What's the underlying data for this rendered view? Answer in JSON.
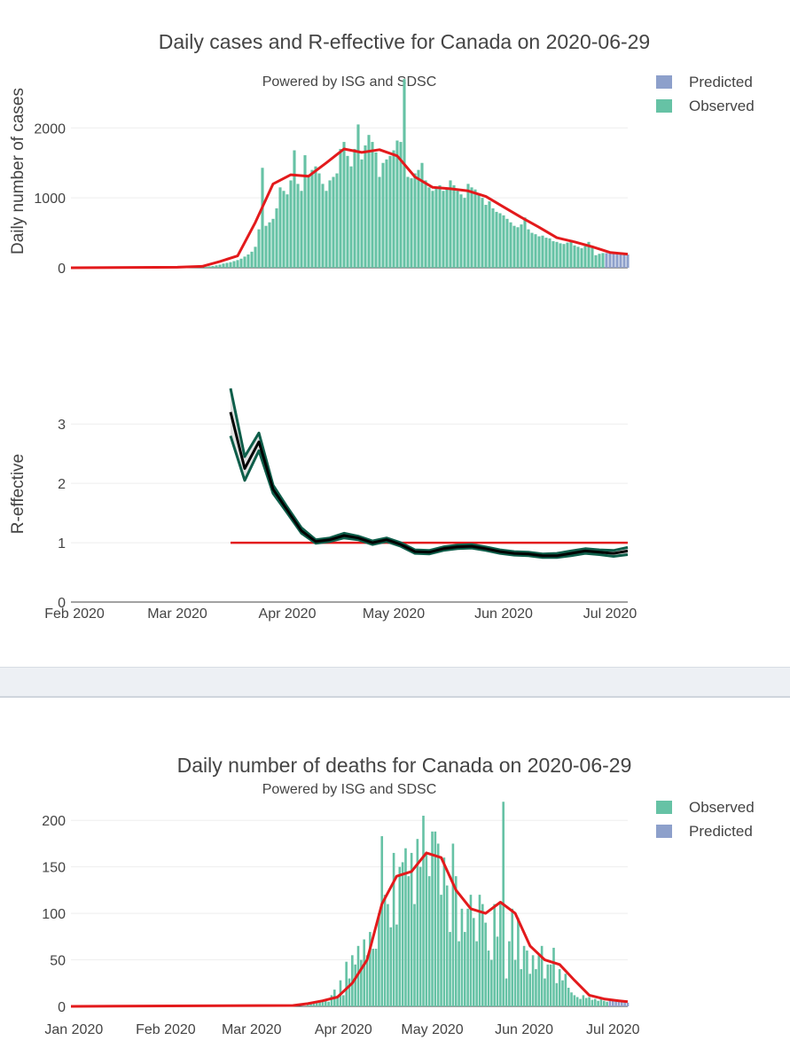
{
  "colors": {
    "observed": "#66c2a5",
    "predicted": "#8da0cb",
    "trend": "#e31a1c",
    "reff_band": "#0e5e4a",
    "reff_mean": "#000000",
    "threshold": "#e31a1c",
    "grid": "#eeeeee"
  },
  "chart_data": [
    {
      "id": "cases",
      "type": "bar",
      "title": "Daily cases and R-effective for Canada on 2020-06-29",
      "subtitle": "Powered by ISG and SDSC",
      "ylabel": "Daily number of cases",
      "xlabel": "",
      "ylim": [
        0,
        2600
      ],
      "yticks": [
        0,
        1000,
        2000
      ],
      "legend": [
        "Predicted",
        "Observed"
      ],
      "legend_position": "top-right",
      "observed_dates": [
        "2020-03-08",
        "2020-03-09",
        "2020-03-10",
        "2020-03-11",
        "2020-03-12",
        "2020-03-13",
        "2020-03-14",
        "2020-03-15",
        "2020-03-16",
        "2020-03-17",
        "2020-03-18",
        "2020-03-19",
        "2020-03-20",
        "2020-03-21",
        "2020-03-22",
        "2020-03-23",
        "2020-03-24",
        "2020-03-25",
        "2020-03-26",
        "2020-03-27",
        "2020-03-28",
        "2020-03-29",
        "2020-03-30",
        "2020-03-31",
        "2020-04-01",
        "2020-04-02",
        "2020-04-03",
        "2020-04-04",
        "2020-04-05",
        "2020-04-06",
        "2020-04-07",
        "2020-04-08",
        "2020-04-09",
        "2020-04-10",
        "2020-04-11",
        "2020-04-12",
        "2020-04-13",
        "2020-04-14",
        "2020-04-15",
        "2020-04-16",
        "2020-04-17",
        "2020-04-18",
        "2020-04-19",
        "2020-04-20",
        "2020-04-21",
        "2020-04-22",
        "2020-04-23",
        "2020-04-24",
        "2020-04-25",
        "2020-04-26",
        "2020-04-27",
        "2020-04-28",
        "2020-04-29",
        "2020-04-30",
        "2020-05-01",
        "2020-05-02",
        "2020-05-03",
        "2020-05-04",
        "2020-05-05",
        "2020-05-06",
        "2020-05-07",
        "2020-05-08",
        "2020-05-09",
        "2020-05-10",
        "2020-05-11",
        "2020-05-12",
        "2020-05-13",
        "2020-05-14",
        "2020-05-15",
        "2020-05-16",
        "2020-05-17",
        "2020-05-18",
        "2020-05-19",
        "2020-05-20",
        "2020-05-21",
        "2020-05-22",
        "2020-05-23",
        "2020-05-24",
        "2020-05-25",
        "2020-05-26",
        "2020-05-27",
        "2020-05-28",
        "2020-05-29",
        "2020-05-30",
        "2020-05-31",
        "2020-06-01",
        "2020-06-02",
        "2020-06-03",
        "2020-06-04",
        "2020-06-05",
        "2020-06-06",
        "2020-06-07",
        "2020-06-08",
        "2020-06-09",
        "2020-06-10",
        "2020-06-11",
        "2020-06-12",
        "2020-06-13",
        "2020-06-14",
        "2020-06-15",
        "2020-06-16",
        "2020-06-17",
        "2020-06-18",
        "2020-06-19",
        "2020-06-20",
        "2020-06-21",
        "2020-06-22",
        "2020-06-23",
        "2020-06-24",
        "2020-06-25",
        "2020-06-26",
        "2020-06-27",
        "2020-06-28",
        "2020-06-29"
      ],
      "observed": [
        10,
        15,
        20,
        25,
        35,
        45,
        60,
        70,
        80,
        95,
        110,
        130,
        160,
        190,
        230,
        300,
        550,
        1430,
        600,
        650,
        700,
        850,
        1150,
        1100,
        1050,
        1250,
        1680,
        1200,
        1100,
        1610,
        1300,
        1400,
        1450,
        1350,
        1200,
        1100,
        1250,
        1300,
        1350,
        1700,
        1800,
        1600,
        1450,
        1700,
        2050,
        1550,
        1750,
        1900,
        1800,
        1650,
        1300,
        1500,
        1550,
        1600,
        1680,
        1820,
        1800,
        2700,
        1300,
        1280,
        1350,
        1400,
        1500,
        1250,
        1150,
        1100,
        1150,
        1180,
        1100,
        1120,
        1250,
        1180,
        1100,
        1050,
        1000,
        1200,
        1150,
        1120,
        1050,
        1000,
        900,
        950,
        850,
        800,
        780,
        750,
        700,
        650,
        600,
        580,
        620,
        720,
        550,
        500,
        480,
        450,
        460,
        430,
        420,
        380,
        370,
        350,
        340,
        360,
        400,
        320,
        300,
        280,
        310,
        370,
        300,
        180,
        200,
        210
      ],
      "predicted_dates": [
        "2020-06-30",
        "2020-07-01",
        "2020-07-02",
        "2020-07-03",
        "2020-07-04",
        "2020-07-05",
        "2020-07-06"
      ],
      "predicted": [
        210,
        205,
        200,
        198,
        195,
        192,
        190
      ],
      "trend_dates": [
        "2020-01-31",
        "2020-03-01",
        "2020-03-08",
        "2020-03-13",
        "2020-03-18",
        "2020-03-23",
        "2020-03-28",
        "2020-04-02",
        "2020-04-07",
        "2020-04-12",
        "2020-04-17",
        "2020-04-22",
        "2020-04-27",
        "2020-05-02",
        "2020-05-07",
        "2020-05-12",
        "2020-05-17",
        "2020-05-22",
        "2020-05-27",
        "2020-06-01",
        "2020-06-06",
        "2020-06-11",
        "2020-06-16",
        "2020-06-21",
        "2020-06-26",
        "2020-07-01",
        "2020-07-06"
      ],
      "trend": [
        0,
        8,
        20,
        90,
        170,
        650,
        1200,
        1330,
        1310,
        1500,
        1700,
        1650,
        1690,
        1600,
        1300,
        1150,
        1130,
        1100,
        1020,
        870,
        720,
        580,
        430,
        370,
        300,
        220,
        195
      ],
      "x_range": [
        "2020-01-31",
        "2020-07-06"
      ],
      "x_ticks": [
        {
          "date": "2020-02-01",
          "label": "Feb 2020"
        },
        {
          "date": "2020-03-01",
          "label": "Mar 2020"
        },
        {
          "date": "2020-04-01",
          "label": "Apr 2020"
        },
        {
          "date": "2020-05-01",
          "label": "May 2020"
        },
        {
          "date": "2020-06-01",
          "label": "Jun 2020"
        },
        {
          "date": "2020-07-01",
          "label": "Jul 2020"
        }
      ]
    },
    {
      "id": "reff",
      "type": "line",
      "ylabel": "R-effective",
      "xlabel": "",
      "ylim": [
        0,
        3.9
      ],
      "yticks": [
        0,
        1,
        2,
        3
      ],
      "threshold": 1,
      "threshold_range": [
        "2020-03-16",
        "2020-07-06"
      ],
      "x_range": [
        "2020-01-31",
        "2020-07-06"
      ],
      "dates": [
        "2020-03-16",
        "2020-03-20",
        "2020-03-24",
        "2020-03-28",
        "2020-04-01",
        "2020-04-05",
        "2020-04-09",
        "2020-04-13",
        "2020-04-17",
        "2020-04-21",
        "2020-04-25",
        "2020-04-29",
        "2020-05-03",
        "2020-05-07",
        "2020-05-11",
        "2020-05-15",
        "2020-05-19",
        "2020-05-23",
        "2020-05-27",
        "2020-05-31",
        "2020-06-04",
        "2020-06-08",
        "2020-06-12",
        "2020-06-16",
        "2020-06-20",
        "2020-06-24",
        "2020-06-28",
        "2020-07-02",
        "2020-07-06"
      ],
      "mean": [
        3.2,
        2.25,
        2.7,
        1.9,
        1.55,
        1.2,
        1.02,
        1.05,
        1.12,
        1.08,
        1.0,
        1.05,
        0.97,
        0.85,
        0.84,
        0.9,
        0.93,
        0.94,
        0.9,
        0.85,
        0.82,
        0.81,
        0.78,
        0.78,
        0.82,
        0.86,
        0.84,
        0.82,
        0.86
      ],
      "upper": [
        3.6,
        2.45,
        2.85,
        1.97,
        1.6,
        1.25,
        1.05,
        1.08,
        1.16,
        1.11,
        1.03,
        1.08,
        1.0,
        0.88,
        0.87,
        0.93,
        0.96,
        0.97,
        0.93,
        0.88,
        0.85,
        0.84,
        0.81,
        0.82,
        0.86,
        0.9,
        0.88,
        0.87,
        0.92
      ],
      "lower": [
        2.8,
        2.05,
        2.55,
        1.83,
        1.5,
        1.16,
        0.99,
        1.02,
        1.08,
        1.05,
        0.97,
        1.02,
        0.94,
        0.82,
        0.81,
        0.87,
        0.9,
        0.91,
        0.87,
        0.82,
        0.79,
        0.78,
        0.75,
        0.75,
        0.78,
        0.82,
        0.8,
        0.77,
        0.8
      ],
      "x_ticks": [
        {
          "date": "2020-02-01",
          "label": "Feb 2020"
        },
        {
          "date": "2020-03-01",
          "label": "Mar 2020"
        },
        {
          "date": "2020-04-01",
          "label": "Apr 2020"
        },
        {
          "date": "2020-05-01",
          "label": "May 2020"
        },
        {
          "date": "2020-06-01",
          "label": "Jun 2020"
        },
        {
          "date": "2020-07-01",
          "label": "Jul 2020"
        }
      ]
    },
    {
      "id": "deaths",
      "type": "bar",
      "title": "Daily number of deaths for Canada on 2020-06-29",
      "subtitle": "Powered by ISG and SDSC",
      "ylabel": "",
      "xlabel": "",
      "ylim": [
        0,
        225
      ],
      "yticks": [
        0,
        50,
        100,
        150,
        200
      ],
      "legend": [
        "Observed",
        "Predicted"
      ],
      "legend_position": "top-right",
      "observed_dates": [
        "2020-03-20",
        "2020-03-21",
        "2020-03-22",
        "2020-03-23",
        "2020-03-24",
        "2020-03-25",
        "2020-03-26",
        "2020-03-27",
        "2020-03-28",
        "2020-03-29",
        "2020-03-30",
        "2020-03-31",
        "2020-04-01",
        "2020-04-02",
        "2020-04-03",
        "2020-04-04",
        "2020-04-05",
        "2020-04-06",
        "2020-04-07",
        "2020-04-08",
        "2020-04-09",
        "2020-04-10",
        "2020-04-11",
        "2020-04-12",
        "2020-04-13",
        "2020-04-14",
        "2020-04-15",
        "2020-04-16",
        "2020-04-17",
        "2020-04-18",
        "2020-04-19",
        "2020-04-20",
        "2020-04-21",
        "2020-04-22",
        "2020-04-23",
        "2020-04-24",
        "2020-04-25",
        "2020-04-26",
        "2020-04-27",
        "2020-04-28",
        "2020-04-29",
        "2020-04-30",
        "2020-05-01",
        "2020-05-02",
        "2020-05-03",
        "2020-05-04",
        "2020-05-05",
        "2020-05-06",
        "2020-05-07",
        "2020-05-08",
        "2020-05-09",
        "2020-05-10",
        "2020-05-11",
        "2020-05-12",
        "2020-05-13",
        "2020-05-14",
        "2020-05-15",
        "2020-05-16",
        "2020-05-17",
        "2020-05-18",
        "2020-05-19",
        "2020-05-20",
        "2020-05-21",
        "2020-05-22",
        "2020-05-23",
        "2020-05-24",
        "2020-05-25",
        "2020-05-26",
        "2020-05-27",
        "2020-05-28",
        "2020-05-29",
        "2020-05-30",
        "2020-05-31",
        "2020-06-01",
        "2020-06-02",
        "2020-06-03",
        "2020-06-04",
        "2020-06-05",
        "2020-06-06",
        "2020-06-07",
        "2020-06-08",
        "2020-06-09",
        "2020-06-10",
        "2020-06-11",
        "2020-06-12",
        "2020-06-13",
        "2020-06-14",
        "2020-06-15",
        "2020-06-16",
        "2020-06-17",
        "2020-06-18",
        "2020-06-19",
        "2020-06-20",
        "2020-06-21",
        "2020-06-22",
        "2020-06-23",
        "2020-06-24",
        "2020-06-25",
        "2020-06-26",
        "2020-06-27",
        "2020-06-28",
        "2020-06-29"
      ],
      "observed": [
        2,
        3,
        3,
        4,
        5,
        7,
        8,
        5,
        12,
        18,
        10,
        28,
        12,
        48,
        30,
        55,
        45,
        65,
        50,
        72,
        55,
        80,
        62,
        62,
        100,
        183,
        120,
        110,
        85,
        165,
        88,
        150,
        155,
        170,
        140,
        165,
        110,
        180,
        150,
        205,
        165,
        140,
        188,
        188,
        175,
        120,
        160,
        130,
        80,
        175,
        140,
        70,
        105,
        80,
        105,
        120,
        95,
        70,
        120,
        110,
        90,
        60,
        50,
        110,
        75,
        110,
        220,
        30,
        70,
        105,
        50,
        95,
        40,
        65,
        60,
        35,
        55,
        40,
        55,
        65,
        30,
        45,
        45,
        63,
        25,
        40,
        28,
        35,
        20,
        15,
        12,
        10,
        8,
        12,
        9,
        10,
        7,
        8,
        6,
        8,
        6,
        5
      ],
      "predicted_dates": [
        "2020-06-30",
        "2020-07-01",
        "2020-07-02",
        "2020-07-03",
        "2020-07-04",
        "2020-07-05",
        "2020-07-06"
      ],
      "predicted": [
        7,
        6,
        6,
        5,
        5,
        5,
        4
      ],
      "trend_dates": [
        "2019-12-31",
        "2020-03-15",
        "2020-03-20",
        "2020-03-25",
        "2020-03-30",
        "2020-04-04",
        "2020-04-09",
        "2020-04-14",
        "2020-04-19",
        "2020-04-24",
        "2020-04-29",
        "2020-05-04",
        "2020-05-09",
        "2020-05-14",
        "2020-05-19",
        "2020-05-24",
        "2020-05-29",
        "2020-06-03",
        "2020-06-08",
        "2020-06-13",
        "2020-06-18",
        "2020-06-23",
        "2020-06-28",
        "2020-07-03",
        "2020-07-06"
      ],
      "trend": [
        0,
        1,
        3,
        6,
        10,
        25,
        50,
        110,
        140,
        145,
        165,
        160,
        125,
        105,
        100,
        112,
        100,
        65,
        50,
        45,
        28,
        12,
        8,
        6,
        5
      ],
      "x_range": [
        "2019-12-31",
        "2020-07-06"
      ],
      "x_ticks": [
        {
          "date": "2020-01-01",
          "label": "Jan 2020"
        },
        {
          "date": "2020-02-01",
          "label": "Feb 2020"
        },
        {
          "date": "2020-03-01",
          "label": "Mar 2020"
        },
        {
          "date": "2020-04-01",
          "label": "Apr 2020"
        },
        {
          "date": "2020-05-01",
          "label": "May 2020"
        },
        {
          "date": "2020-06-01",
          "label": "Jun 2020"
        },
        {
          "date": "2020-07-01",
          "label": "Jul 2020"
        }
      ]
    }
  ]
}
